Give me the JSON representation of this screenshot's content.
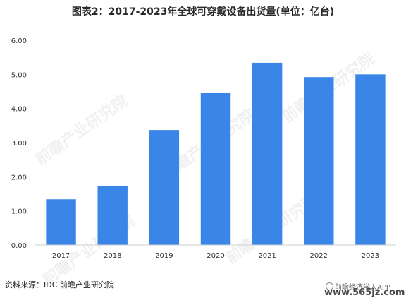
{
  "chart_data": {
    "type": "bar",
    "title": "图表2：2017-2023年全球可穿戴设备出货量(单位：亿台)",
    "categories": [
      "2017",
      "2018",
      "2019",
      "2020",
      "2021",
      "2022",
      "2023"
    ],
    "values": [
      1.34,
      1.72,
      3.37,
      4.45,
      5.34,
      4.92,
      5.0
    ],
    "yticks": [
      "0.00",
      "1.00",
      "2.00",
      "3.00",
      "4.00",
      "5.00",
      "6.00"
    ],
    "ylim": [
      0,
      6
    ],
    "grid": false,
    "bar_color": "#3a86e8"
  },
  "footer": {
    "source": "资料来源：IDC 前瞻产业研究院",
    "credit": "前瞻经济学人APP",
    "site": "www.565jz.com"
  },
  "watermark": "前瞻产业研究院"
}
